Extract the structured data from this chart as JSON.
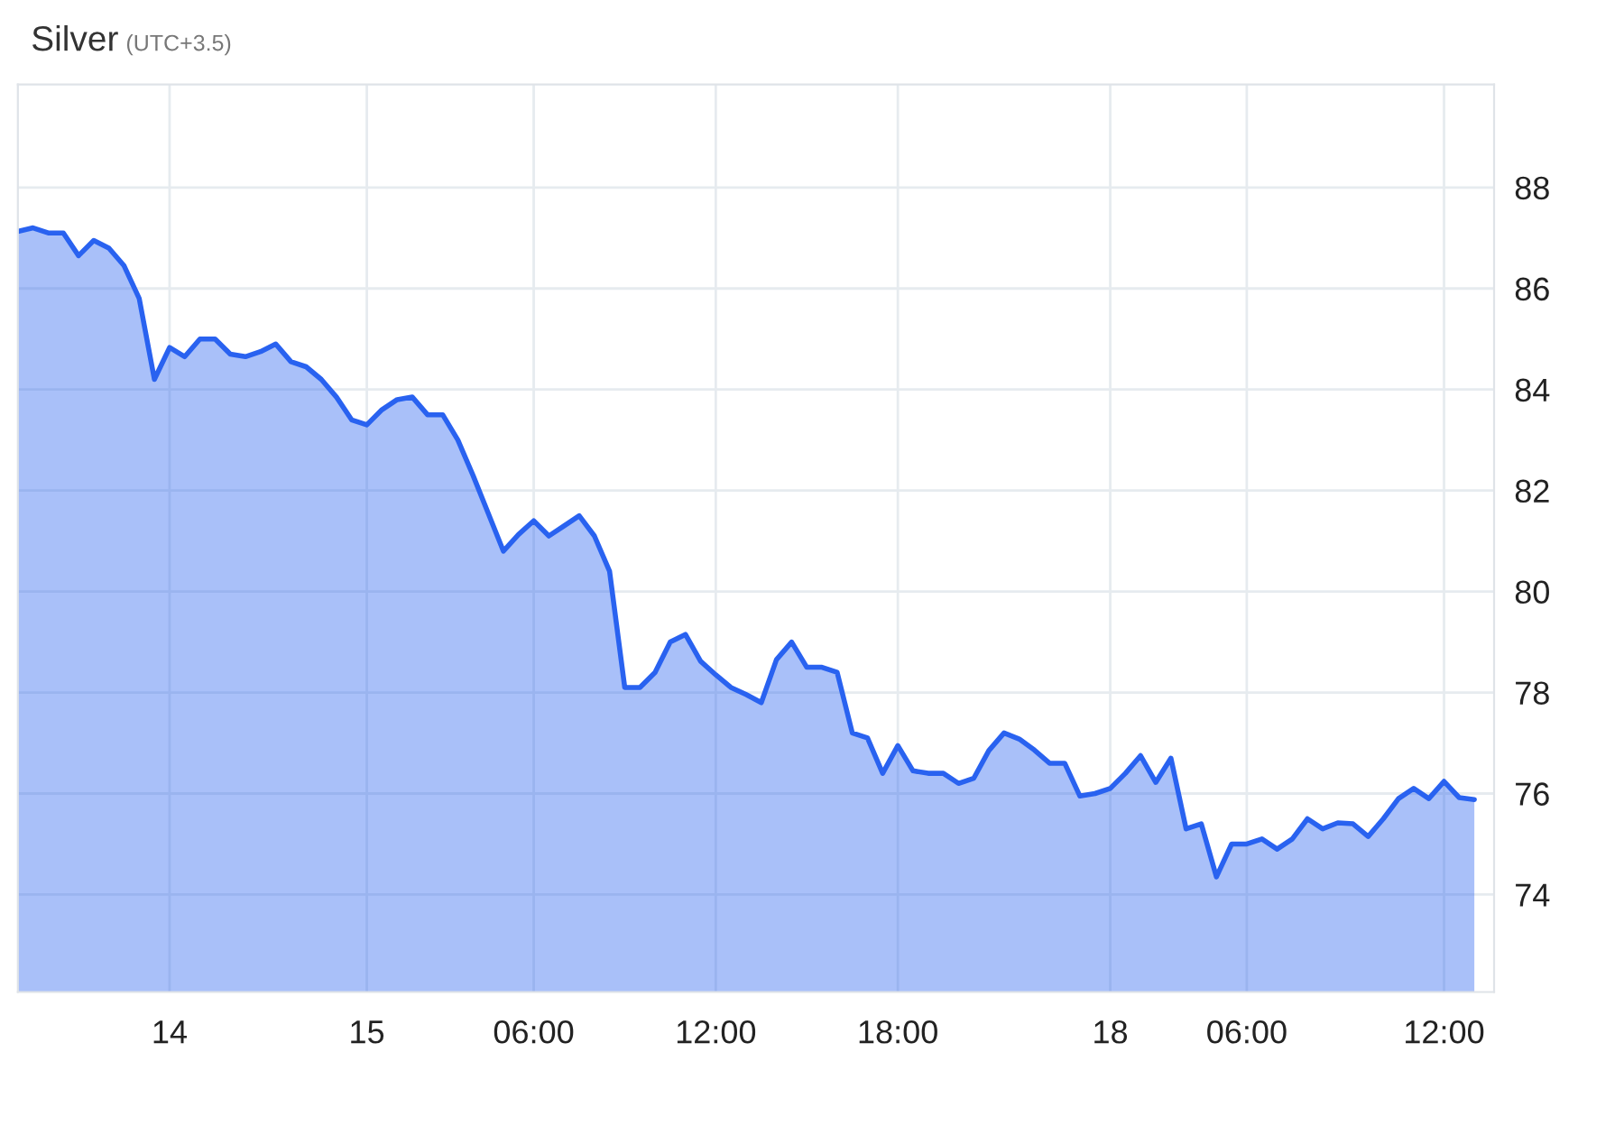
{
  "chart_data": {
    "type": "area",
    "title": "Silver",
    "subtitle": "(UTC+3.5)",
    "categories": [
      null,
      null,
      null,
      null,
      null,
      null,
      null,
      null,
      null,
      null,
      "14",
      null,
      null,
      null,
      null,
      null,
      null,
      null,
      null,
      null,
      null,
      null,
      null,
      "15",
      null,
      null,
      null,
      null,
      null,
      null,
      null,
      null,
      null,
      null,
      "06:00",
      null,
      null,
      null,
      null,
      null,
      null,
      null,
      null,
      null,
      null,
      null,
      "12:00",
      null,
      null,
      null,
      null,
      null,
      null,
      null,
      null,
      null,
      null,
      null,
      "18:00",
      null,
      null,
      null,
      null,
      null,
      null,
      null,
      null,
      null,
      null,
      null,
      null,
      null,
      "18",
      null,
      null,
      null,
      null,
      null,
      null,
      null,
      null,
      "06:00",
      null,
      null,
      null,
      null,
      null,
      null,
      null,
      null,
      null,
      null,
      null,
      null,
      "12:00",
      null,
      null
    ],
    "series": [
      {
        "color": "#2962f0",
        "values": [
          87.13,
          87.2,
          87.1,
          87.1,
          86.65,
          86.95,
          86.8,
          86.45,
          85.8,
          84.2,
          84.83,
          84.65,
          85.0,
          85.0,
          84.7,
          84.65,
          84.75,
          84.9,
          84.55,
          84.45,
          84.2,
          83.85,
          83.4,
          83.3,
          83.6,
          83.8,
          83.85,
          83.5,
          83.5,
          83.0,
          82.3,
          81.55,
          80.8,
          81.13,
          81.4,
          81.1,
          81.3,
          81.5,
          81.1,
          80.4,
          78.1,
          78.1,
          78.4,
          79.0,
          79.15,
          78.62,
          78.35,
          78.1,
          77.96,
          77.8,
          78.65,
          79.0,
          78.5,
          78.5,
          78.4,
          77.2,
          77.1,
          76.4,
          76.95,
          76.45,
          76.4,
          76.4,
          76.2,
          76.3,
          76.85,
          77.2,
          77.08,
          76.86,
          76.6,
          76.6,
          75.95,
          76.0,
          76.1,
          76.4,
          76.75,
          76.22,
          76.7,
          75.3,
          75.4,
          74.35,
          75.0,
          75.0,
          75.1,
          74.9,
          75.1,
          75.5,
          75.3,
          75.42,
          75.4,
          75.15,
          75.5,
          75.9,
          76.1,
          75.9,
          76.24,
          75.92,
          75.88
        ]
      }
    ],
    "ylim": [
      72.07,
      90.04
    ],
    "yticks": [
      74,
      76,
      78,
      80,
      82,
      84,
      86,
      88
    ],
    "grid": true,
    "legend": false
  }
}
